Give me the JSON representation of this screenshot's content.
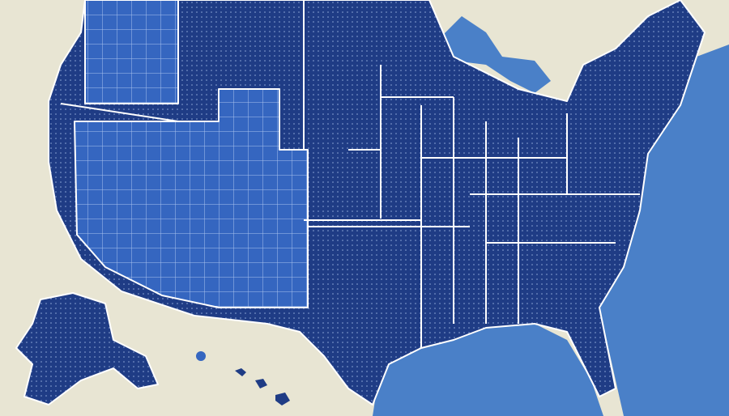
{
  "map": {
    "colors": {
      "land_background": "#e8e5d3",
      "states_dark": "#1f3c85",
      "states_grid": "#3566c0",
      "water": "#4a80c8",
      "borders": "#ffffff"
    }
  }
}
